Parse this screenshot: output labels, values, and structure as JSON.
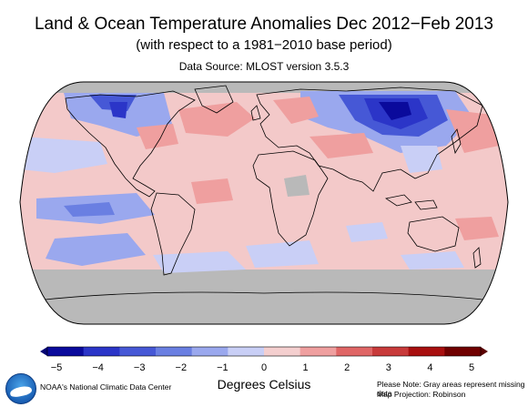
{
  "header": {
    "title": "Land & Ocean Temperature Anomalies Dec 2012−Feb 2013",
    "subtitle": "(with respect to a 1981−2010 base period)",
    "source": "Data Source: MLOST version 3.5.3"
  },
  "legend": {
    "ticks": [
      "−5",
      "−4",
      "−3",
      "−2",
      "−1",
      "0",
      "1",
      "2",
      "3",
      "4",
      "5"
    ],
    "unit": "Degrees Celsius",
    "range": [
      -5,
      5
    ],
    "colors": [
      "#0a0a9c",
      "#2b35c8",
      "#4658d6",
      "#6a7fe2",
      "#9aa8ee",
      "#c9cff6",
      "#f4cfcf",
      "#ef9f9f",
      "#e06666",
      "#c83a3a",
      "#a80f0f",
      "#700000"
    ]
  },
  "map": {
    "projection": "Robinson",
    "missing_color": "#b9b9b9",
    "ocean_base": "#f3c9c9",
    "coastline_color": "#000000"
  },
  "footer": {
    "credit": "NOAA's National Climatic Data Center",
    "note_line1": "Please Note: Gray areas represent missing data",
    "note_line2": "Map Projection: Robinson"
  },
  "logo": {
    "icon": "noaa-logo-icon"
  }
}
